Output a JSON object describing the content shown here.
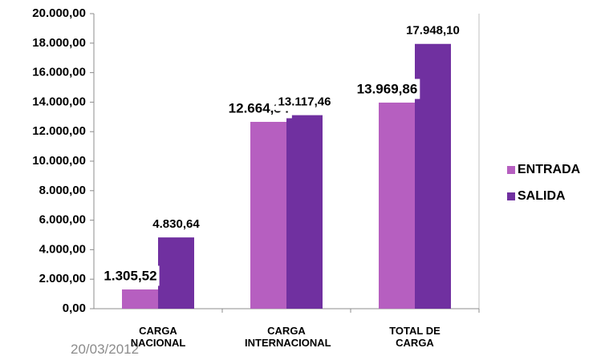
{
  "chart_data": {
    "type": "bar",
    "categories": [
      "CARGA NACIONAL",
      "CARGA INTERNACIONAL",
      "TOTAL DE CARGA"
    ],
    "series": [
      {
        "name": "ENTRADA",
        "color": "#b65fc0",
        "values": [
          1305.52,
          12664.34,
          13969.86
        ],
        "value_labels": [
          "1.305,52",
          "12.664,34",
          "13.969,86"
        ]
      },
      {
        "name": "SALIDA",
        "color": "#7030a0",
        "values": [
          4830.64,
          13117.46,
          17948.1
        ],
        "value_labels": [
          "4.830,64",
          "13.117,46",
          "17.948,10"
        ]
      }
    ],
    "ylim": [
      0,
      20000
    ],
    "yticks": [
      {
        "value": 0,
        "label": "0,00"
      },
      {
        "value": 2000,
        "label": "2.000,00"
      },
      {
        "value": 4000,
        "label": "4.000,00"
      },
      {
        "value": 6000,
        "label": "6.000,00"
      },
      {
        "value": 8000,
        "label": "8.000,00"
      },
      {
        "value": 10000,
        "label": "10.000,00"
      },
      {
        "value": 12000,
        "label": "12.000,00"
      },
      {
        "value": 14000,
        "label": "14.000,00"
      },
      {
        "value": 16000,
        "label": "16.000,00"
      },
      {
        "value": 18000,
        "label": "18.000,00"
      },
      {
        "value": 20000,
        "label": "20.000,00"
      }
    ],
    "grid": false,
    "legend": "right"
  },
  "footer": {
    "date": "20/03/2012"
  }
}
